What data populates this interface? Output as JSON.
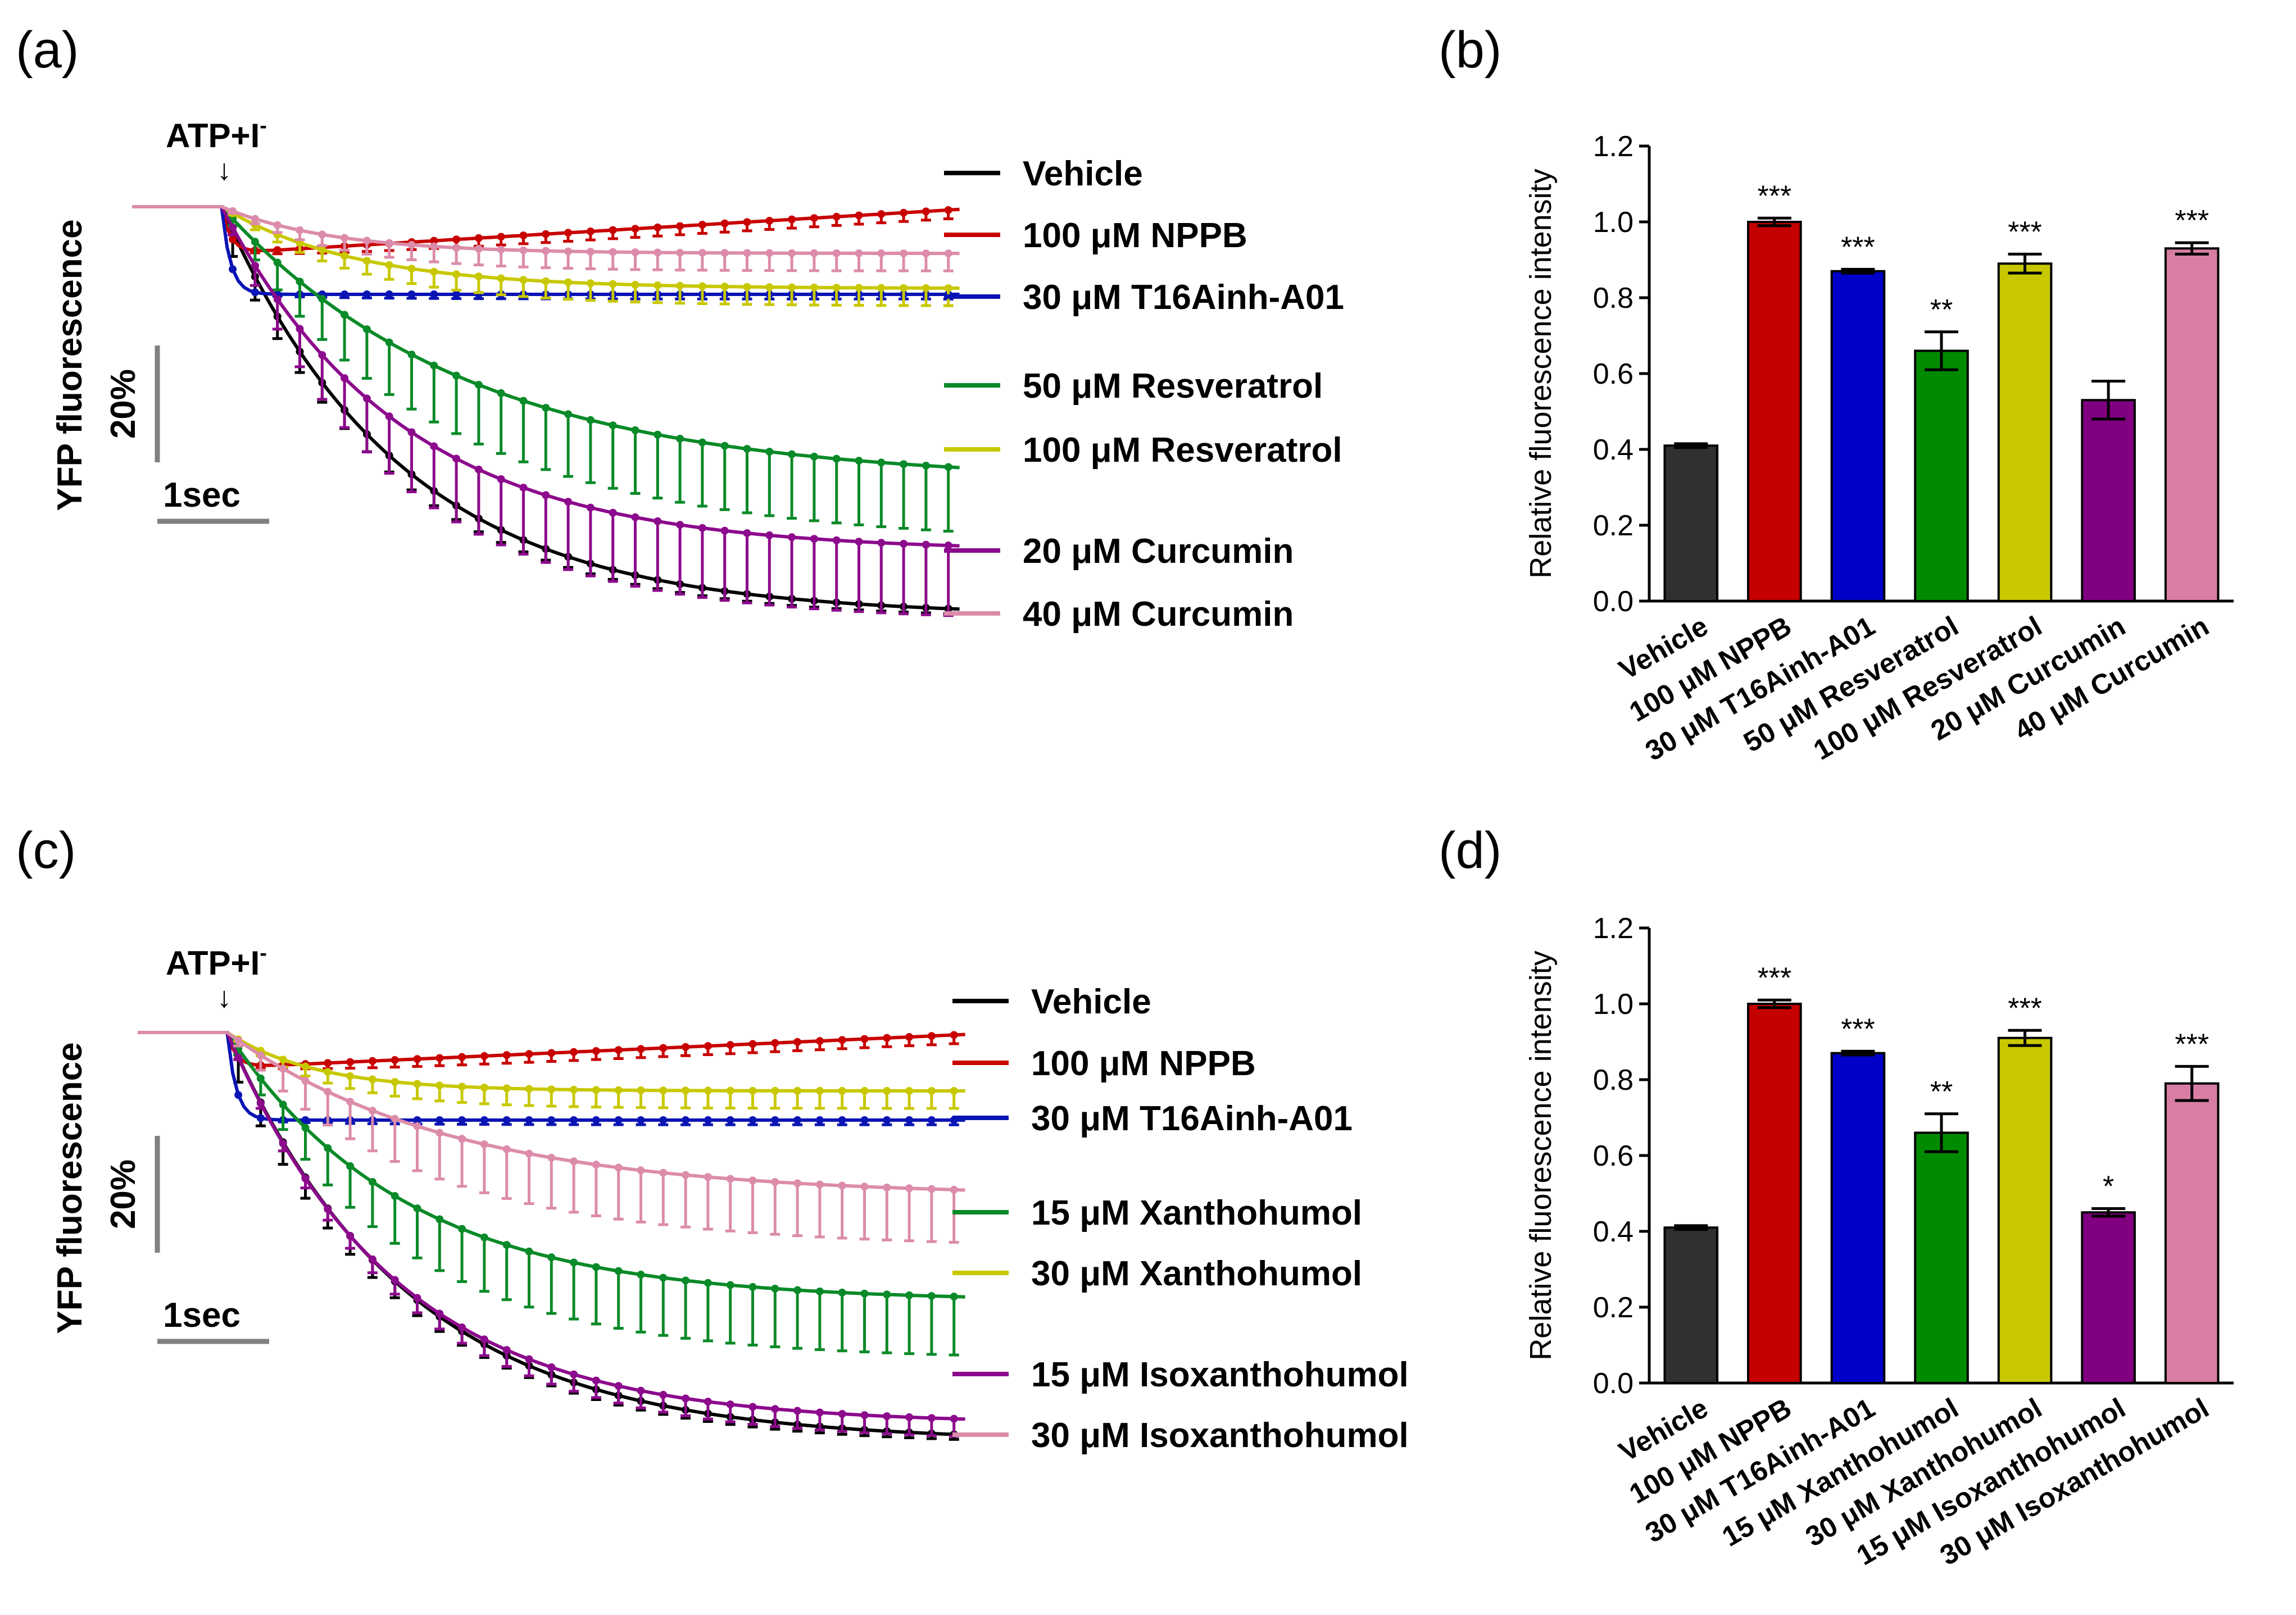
{
  "colors": {
    "Vehicle": "#000000",
    "NPPB": "#c80000",
    "T16Ainh": "#0a14b4",
    "green": "#0a8a28",
    "yellow": "#c8c800",
    "purple": "#8c0a8c",
    "pink": "#dc8caa",
    "bar_black": "#303030",
    "bar_red": "#c40000",
    "bar_blue": "#0000c8",
    "bar_green": "#008a00",
    "bar_yellow": "#c8c800",
    "bar_purple": "#800080",
    "bar_pink": "#d87ea4"
  },
  "chart_data": [
    {
      "panel": "(a)",
      "type": "line",
      "annotation": "ATP+I",
      "annotation_sup": "-",
      "ylabel": "YFP fluorescence",
      "scalebar_y": "20%",
      "scalebar_x": "1sec",
      "x_unit": "sec",
      "y_unit": "% of baseline",
      "x_range": [
        0,
        7.5
      ],
      "series": [
        {
          "name": "Vehicle",
          "color_key": "Vehicle",
          "baseline": 100,
          "final": 30,
          "tau": 1.6,
          "err_max": 4,
          "err_decay": 1.2
        },
        {
          "name": "100 μM NPPB",
          "color_key": "NPPB",
          "baseline": 100,
          "final": 100,
          "initial_drop": 8,
          "recovery": 8,
          "err_max": 1.5,
          "err_decay": 0
        },
        {
          "name": "30 μM T16Ainh-A01",
          "color_key": "T16Ainh",
          "baseline": 100,
          "final": 84,
          "initial_drop": 15,
          "recovery": 0,
          "err_max": 0.8,
          "err_decay": 0
        },
        {
          "name": "50 μM Resveratrol",
          "color_key": "green",
          "baseline": 100,
          "final": 53,
          "tau": 2.2,
          "err_max": 11,
          "err_decay": 0
        },
        {
          "name": "100 μM Resveratrol",
          "color_key": "yellow",
          "baseline": 100,
          "final": 86,
          "tau": 1.2,
          "err_max": 3,
          "err_decay": 0
        },
        {
          "name": "20 μM Curcumin",
          "color_key": "purple",
          "baseline": 100,
          "final": 41,
          "tau": 1.6,
          "err_max": 12,
          "err_decay": 0
        },
        {
          "name": "40 μM Curcumin",
          "color_key": "pink",
          "baseline": 100,
          "final": 92,
          "tau": 1.0,
          "err_max": 3,
          "err_decay": 0
        }
      ]
    },
    {
      "panel": "(b)",
      "type": "bar",
      "ylabel": "Relative fluorescence intensity",
      "ylim": [
        0,
        1.2
      ],
      "yticks": [
        "0.0",
        "0.2",
        "0.4",
        "0.6",
        "0.8",
        "1.0",
        "1.2"
      ],
      "categories": [
        "Vehicle",
        "100 μM NPPB",
        "30 μM T16Ainh-A01",
        "50 μM Resveratrol",
        "100 μM Resveratrol",
        "20 μM Curcumin",
        "40 μM Curcumin"
      ],
      "values": [
        0.41,
        1.0,
        0.87,
        0.66,
        0.89,
        0.53,
        0.93
      ],
      "errors": [
        0.005,
        0.01,
        0.005,
        0.05,
        0.025,
        0.05,
        0.015
      ],
      "significance": [
        "",
        "***",
        "***",
        "**",
        "***",
        "",
        "***"
      ],
      "bar_color_keys": [
        "bar_black",
        "bar_red",
        "bar_blue",
        "bar_green",
        "bar_yellow",
        "bar_purple",
        "bar_pink"
      ]
    },
    {
      "panel": "(c)",
      "type": "line",
      "annotation": "ATP+I",
      "annotation_sup": "-",
      "ylabel": "YFP fluorescence",
      "scalebar_y": "20%",
      "scalebar_x": "1sec",
      "x_unit": "sec",
      "y_unit": "% of baseline",
      "x_range": [
        0,
        7.5
      ],
      "series": [
        {
          "name": "Vehicle",
          "color_key": "Vehicle",
          "baseline": 100,
          "final": 30,
          "tau": 1.6,
          "err_max": 4,
          "err_decay": 1.2
        },
        {
          "name": "100 μM NPPB",
          "color_key": "NPPB",
          "baseline": 100,
          "final": 100,
          "initial_drop": 6,
          "recovery": 6,
          "err_max": 1.5,
          "err_decay": 0
        },
        {
          "name": "30 μM T16Ainh-A01",
          "color_key": "T16Ainh",
          "baseline": 100,
          "final": 82,
          "initial_drop": 15,
          "recovery": 0,
          "err_max": 0.8,
          "err_decay": 0
        },
        {
          "name": "15 μM Xanthohumol",
          "color_key": "green",
          "baseline": 100,
          "final": 54,
          "tau": 1.6,
          "err_max": 10,
          "err_decay": 0
        },
        {
          "name": "30 μM Xanthohumol",
          "color_key": "yellow",
          "baseline": 100,
          "final": 90,
          "tau": 0.8,
          "err_max": 3,
          "err_decay": 0
        },
        {
          "name": "15 μM Isoxanthohumol",
          "color_key": "purple",
          "baseline": 100,
          "final": 33,
          "tau": 1.5,
          "err_max": 3,
          "err_decay": 0
        },
        {
          "name": "30 μM Isoxanthohumol",
          "color_key": "pink",
          "baseline": 100,
          "final": 72,
          "tau": 2.0,
          "err_max": 9,
          "err_decay": 0
        }
      ]
    },
    {
      "panel": "(d)",
      "type": "bar",
      "ylabel": "Relative fluorescence intensity",
      "ylim": [
        0,
        1.2
      ],
      "yticks": [
        "0.0",
        "0.2",
        "0.4",
        "0.6",
        "0.8",
        "1.0",
        "1.2"
      ],
      "categories": [
        "Vehicle",
        "100 μM NPPB",
        "30 μM T16Ainh-A01",
        "15 μM Xanthohumol",
        "30 μM Xanthohumol",
        "15 μM Isoxanthohumol",
        "30 μM Isoxanthohumol"
      ],
      "values": [
        0.41,
        1.0,
        0.87,
        0.66,
        0.91,
        0.45,
        0.79
      ],
      "errors": [
        0.005,
        0.01,
        0.005,
        0.05,
        0.02,
        0.01,
        0.045
      ],
      "significance": [
        "",
        "***",
        "***",
        "**",
        "***",
        "*",
        "***"
      ],
      "bar_color_keys": [
        "bar_black",
        "bar_red",
        "bar_blue",
        "bar_green",
        "bar_yellow",
        "bar_purple",
        "bar_pink"
      ]
    }
  ]
}
